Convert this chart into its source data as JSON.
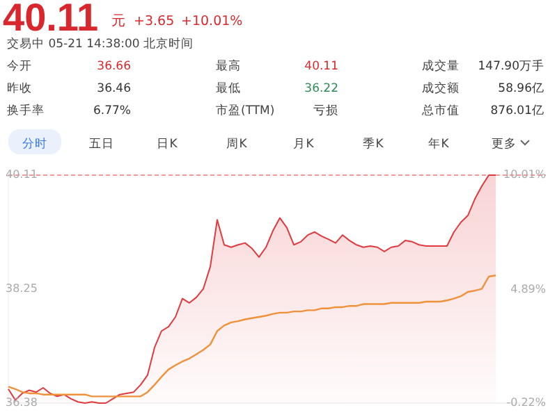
{
  "chart_data": {
    "type": "area",
    "title": "40.11",
    "subtitle": "交易中 05-21 14:38:00 北京时间",
    "annotations": [
      "元",
      "+3.65",
      "+10.01%",
      "今开",
      "36.66",
      "最高",
      "40.11",
      "成交量",
      "147.90万手",
      "昨收",
      "36.46",
      "最低",
      "36.22",
      "成交额",
      "58.96亿",
      "换手率",
      "6.77%",
      "市盈(TTM)",
      "亏损",
      "总市值",
      "876.01亿",
      "分时",
      "五日",
      "日K",
      "周K",
      "月K",
      "季K",
      "年K",
      "更多"
    ],
    "categories": [
      null,
      null,
      null,
      null,
      null,
      null,
      null,
      null,
      null,
      null,
      null,
      null,
      null,
      null,
      null,
      null,
      null,
      null,
      null,
      null,
      null,
      null,
      null,
      null,
      null,
      null,
      null,
      null,
      null,
      null,
      null,
      null,
      null,
      null,
      null,
      null,
      null,
      null,
      null,
      null,
      null,
      null,
      null,
      null,
      null,
      null,
      null,
      null,
      null,
      null,
      null,
      null,
      null,
      null,
      null,
      null,
      null,
      null,
      null,
      null,
      null,
      null,
      null,
      null,
      null,
      null,
      null,
      null,
      null,
      null,
      null
    ],
    "series": [
      {
        "color": "#e0393e",
        "values": [
          36.61,
          36.43,
          36.54,
          36.59,
          36.56,
          36.63,
          36.54,
          36.49,
          36.52,
          36.45,
          36.4,
          36.38,
          36.4,
          36.38,
          36.38,
          36.45,
          36.52,
          36.54,
          36.56,
          36.68,
          36.84,
          37.29,
          37.56,
          37.63,
          37.79,
          38.09,
          38.02,
          38.11,
          38.25,
          38.61,
          39.38,
          38.97,
          38.93,
          38.97,
          39.0,
          38.91,
          38.77,
          38.93,
          39.2,
          39.41,
          39.25,
          38.97,
          39.02,
          39.13,
          39.18,
          39.11,
          39.06,
          39.0,
          39.13,
          39.04,
          38.97,
          38.93,
          38.95,
          38.93,
          38.86,
          38.93,
          38.95,
          39.04,
          39.02,
          38.97,
          38.95,
          38.95,
          38.95,
          38.95,
          39.18,
          39.34,
          39.45,
          39.72,
          39.93,
          40.11,
          40.11
        ]
      },
      {
        "type": "line",
        "color": "#f0913a",
        "values": [
          36.65,
          36.61,
          36.56,
          36.54,
          36.54,
          36.52,
          36.52,
          36.52,
          36.52,
          36.52,
          36.52,
          36.52,
          36.49,
          36.49,
          36.49,
          36.49,
          36.49,
          36.49,
          36.49,
          36.49,
          36.56,
          36.68,
          36.81,
          36.93,
          37.0,
          37.06,
          37.11,
          37.18,
          37.25,
          37.34,
          37.56,
          37.65,
          37.7,
          37.72,
          37.75,
          37.77,
          37.79,
          37.81,
          37.84,
          37.86,
          37.86,
          37.88,
          37.88,
          37.9,
          37.9,
          37.93,
          37.93,
          37.95,
          37.95,
          37.97,
          37.97,
          38.0,
          38.0,
          38.0,
          38.0,
          38.02,
          38.02,
          38.02,
          38.02,
          38.02,
          38.04,
          38.04,
          38.04,
          38.06,
          38.09,
          38.13,
          38.2,
          38.22,
          38.25,
          38.45,
          38.47
        ]
      }
    ],
    "ylim": [
      36.38,
      40.11
    ],
    "yticks": [
      40.11,
      38.25,
      36.38
    ],
    "y2lim": [
      -0.22,
      10.01
    ],
    "y2ticks": [
      {
        "value": 10.01,
        "label": "10.01%"
      },
      {
        "value": 4.89,
        "label": "4.89%"
      },
      {
        "value": -0.22,
        "label": "-0.22%"
      }
    ],
    "ref_lines": [
      {
        "axis": "y",
        "value": 40.11,
        "color": "#f08080",
        "line_style": "dashed"
      }
    ]
  }
}
